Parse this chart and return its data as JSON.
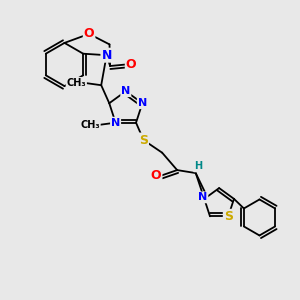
{
  "bg_color": "#e8e8e8",
  "bond_color": "#000000",
  "atom_colors": {
    "N": "#0000ff",
    "O": "#ff0000",
    "S": "#ccaa00",
    "H": "#008888",
    "C": "#000000"
  },
  "font_size": 8,
  "line_width": 1.3,
  "fig_w": 3.0,
  "fig_h": 3.0,
  "dpi": 100,
  "xlim": [
    0,
    10
  ],
  "ylim": [
    0,
    10
  ]
}
